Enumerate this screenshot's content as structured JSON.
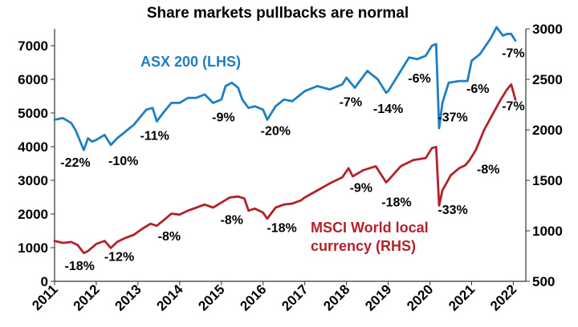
{
  "chart_data": {
    "type": "line",
    "title": "Share markets pullbacks are normal",
    "x_ticks": [
      "2011",
      "2012",
      "2013",
      "2014",
      "2015",
      "2016",
      "2017",
      "2018",
      "2019",
      "2020",
      "2021",
      "2022"
    ],
    "y_left": {
      "min": 0,
      "max": 7500,
      "ticks": [
        "0",
        "1000",
        "2000",
        "3000",
        "4000",
        "5000",
        "6000",
        "7000"
      ]
    },
    "y_right": {
      "min": 500,
      "max": 3000,
      "ticks": [
        "500",
        "1000",
        "1500",
        "2000",
        "2500",
        "3000"
      ]
    },
    "grid": false,
    "series": [
      {
        "name": "ASX 200 (LHS)",
        "axis": "left",
        "color": "#1f7fc4",
        "x": [
          2011.0,
          2011.2,
          2011.4,
          2011.5,
          2011.6,
          2011.7,
          2011.8,
          2011.9,
          2012.0,
          2012.2,
          2012.35,
          2012.5,
          2012.7,
          2012.9,
          2013.0,
          2013.2,
          2013.35,
          2013.45,
          2013.6,
          2013.8,
          2014.0,
          2014.2,
          2014.4,
          2014.6,
          2014.8,
          2015.0,
          2015.1,
          2015.25,
          2015.4,
          2015.5,
          2015.65,
          2015.8,
          2016.0,
          2016.1,
          2016.3,
          2016.5,
          2016.7,
          2016.9,
          2017.0,
          2017.3,
          2017.6,
          2017.9,
          2018.0,
          2018.2,
          2018.5,
          2018.75,
          2018.95,
          2019.0,
          2019.3,
          2019.5,
          2019.7,
          2019.9,
          2020.05,
          2020.15,
          2020.22,
          2020.3,
          2020.45,
          2020.7,
          2020.9,
          2021.0,
          2021.2,
          2021.45,
          2021.6,
          2021.75,
          2021.85,
          2021.95,
          2022.05
        ],
        "values": [
          4800,
          4850,
          4700,
          4500,
          4200,
          3900,
          4250,
          4150,
          4200,
          4350,
          4050,
          4250,
          4450,
          4650,
          4800,
          5100,
          5150,
          4750,
          5000,
          5300,
          5300,
          5450,
          5450,
          5550,
          5300,
          5400,
          5800,
          5900,
          5750,
          5400,
          5150,
          5200,
          5100,
          4800,
          5200,
          5400,
          5350,
          5550,
          5650,
          5800,
          5700,
          5850,
          6050,
          5750,
          6250,
          6000,
          5600,
          5650,
          6250,
          6650,
          6600,
          6700,
          7000,
          7050,
          4550,
          5300,
          5900,
          5950,
          5950,
          6550,
          6750,
          7200,
          7550,
          7300,
          7350,
          7350,
          7150
        ]
      },
      {
        "name": "MSCI World local currency (RHS)",
        "axis": "right",
        "color": "#b3212a",
        "x": [
          2011.0,
          2011.2,
          2011.4,
          2011.55,
          2011.7,
          2011.8,
          2012.0,
          2012.2,
          2012.35,
          2012.5,
          2012.7,
          2012.9,
          2013.1,
          2013.3,
          2013.45,
          2013.6,
          2013.8,
          2014.0,
          2014.2,
          2014.4,
          2014.6,
          2014.8,
          2015.0,
          2015.2,
          2015.4,
          2015.55,
          2015.65,
          2015.8,
          2016.0,
          2016.1,
          2016.3,
          2016.5,
          2016.7,
          2016.9,
          2017.0,
          2017.3,
          2017.6,
          2017.9,
          2018.05,
          2018.15,
          2018.4,
          2018.7,
          2018.95,
          2019.0,
          2019.3,
          2019.6,
          2019.9,
          2020.05,
          2020.15,
          2020.22,
          2020.3,
          2020.5,
          2020.7,
          2020.85,
          2020.95,
          2021.1,
          2021.3,
          2021.5,
          2021.7,
          2021.85,
          2021.95,
          2022.05
        ],
        "values": [
          900,
          880,
          890,
          860,
          780,
          800,
          870,
          900,
          830,
          890,
          930,
          960,
          1020,
          1070,
          1050,
          1100,
          1170,
          1160,
          1200,
          1230,
          1260,
          1230,
          1280,
          1330,
          1340,
          1320,
          1200,
          1220,
          1180,
          1120,
          1230,
          1260,
          1270,
          1300,
          1330,
          1400,
          1470,
          1530,
          1620,
          1540,
          1600,
          1640,
          1480,
          1500,
          1640,
          1700,
          1720,
          1820,
          1830,
          1250,
          1400,
          1550,
          1620,
          1650,
          1700,
          1800,
          2000,
          2150,
          2300,
          2400,
          2450,
          2300
        ]
      }
    ],
    "annotations": [
      {
        "text": "-22%",
        "x": 2011.5,
        "y": 3400
      },
      {
        "text": "-10%",
        "x": 2012.65,
        "y": 3450
      },
      {
        "text": "-11%",
        "x": 2013.4,
        "y": 4200
      },
      {
        "text": "-9%",
        "x": 2015.05,
        "y": 4750
      },
      {
        "text": "-20%",
        "x": 2016.3,
        "y": 4350
      },
      {
        "text": "-7%",
        "x": 2018.1,
        "y": 5200
      },
      {
        "text": "-14%",
        "x": 2019.0,
        "y": 5000
      },
      {
        "text": "-6%",
        "x": 2019.75,
        "y": 5900
      },
      {
        "text": "-37%",
        "x": 2020.55,
        "y": 4750
      },
      {
        "text": "-6%",
        "x": 2021.15,
        "y": 5600
      },
      {
        "text": "-7%",
        "x": 2022.0,
        "y": 6650
      },
      {
        "text": "-18%",
        "x": 2011.6,
        "y": 330
      },
      {
        "text": "-12%",
        "x": 2012.55,
        "y": 610
      },
      {
        "text": "-8%",
        "x": 2013.75,
        "y": 1210
      },
      {
        "text": "-8%",
        "x": 2015.25,
        "y": 1700
      },
      {
        "text": "-18%",
        "x": 2016.45,
        "y": 1470
      },
      {
        "text": "-9%",
        "x": 2018.35,
        "y": 2660
      },
      {
        "text": "-18%",
        "x": 2019.2,
        "y": 2230
      },
      {
        "text": "-33%",
        "x": 2020.55,
        "y": 2000
      },
      {
        "text": "-8%",
        "x": 2021.4,
        "y": 3200
      },
      {
        "text": "-7%",
        "x": 2022.0,
        "y": 5080
      }
    ],
    "labels": {
      "asx_label": "ASX 200 (LHS)",
      "msci_label_line1": "MSCI World local",
      "msci_label_line2": "currency (RHS)"
    }
  }
}
